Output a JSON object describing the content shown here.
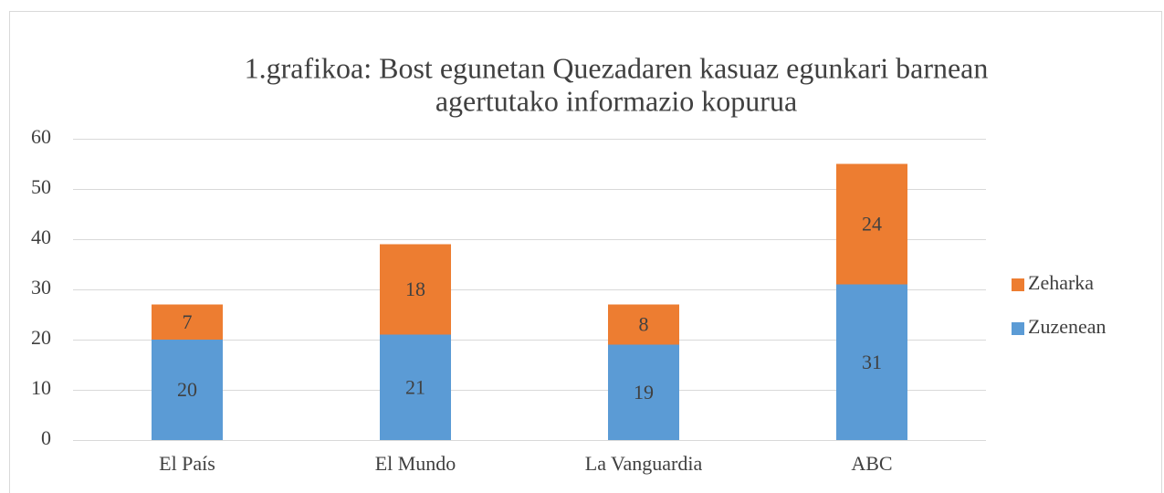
{
  "chart_data": {
    "type": "stacked_bar",
    "title": [
      "1.grafikoa: Bost egunetan Quezadaren kasuaz egunkari barnean",
      "agertutako informazio kopurua"
    ],
    "categories": [
      "El País",
      "El Mundo",
      "La Vanguardia",
      "ABC"
    ],
    "series": [
      {
        "name": "Zuzenean",
        "color": "#5b9bd5",
        "values": [
          20,
          21,
          19,
          31
        ]
      },
      {
        "name": "Zeharka",
        "color": "#ed7d31",
        "values": [
          7,
          18,
          8,
          24
        ]
      }
    ],
    "ylim": [
      0,
      60
    ],
    "yticks": [
      0,
      10,
      20,
      30,
      40,
      50,
      60
    ],
    "grid": true,
    "legend": "right"
  }
}
